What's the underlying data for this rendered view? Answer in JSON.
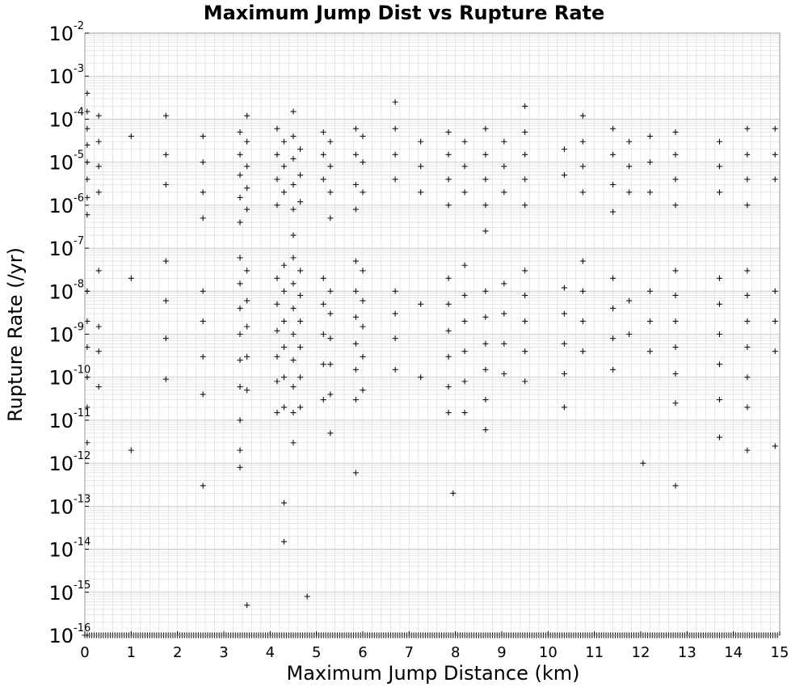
{
  "chart_data": {
    "type": "scatter",
    "title": "Maximum Jump Dist vs Rupture Rate",
    "xlabel": "Maximum Jump Distance (km)",
    "ylabel": "Rupture Rate (/yr)",
    "xlim": [
      0,
      15
    ],
    "ylim": [
      1e-16,
      0.01
    ],
    "yscale": "log",
    "grid": true,
    "marker": "+",
    "marker_color": "#000000",
    "x_ticks": [
      "0",
      "1",
      "2",
      "3",
      "4",
      "5",
      "6",
      "7",
      "8",
      "9",
      "10",
      "11",
      "12",
      "13",
      "14",
      "15"
    ],
    "y_ticks": [
      {
        "base": "10",
        "exp": "-2"
      },
      {
        "base": "10",
        "exp": "-3"
      },
      {
        "base": "10",
        "exp": "-4"
      },
      {
        "base": "10",
        "exp": "-5"
      },
      {
        "base": "10",
        "exp": "-6"
      },
      {
        "base": "10",
        "exp": "-7"
      },
      {
        "base": "10",
        "exp": "-8"
      },
      {
        "base": "10",
        "exp": "-9"
      },
      {
        "base": "10",
        "exp": "-10"
      },
      {
        "base": "10",
        "exp": "-11"
      },
      {
        "base": "10",
        "exp": "-12"
      },
      {
        "base": "10",
        "exp": "-13"
      },
      {
        "base": "10",
        "exp": "-14"
      },
      {
        "base": "10",
        "exp": "-15"
      },
      {
        "base": "10",
        "exp": "-16"
      }
    ],
    "cluster_columns_km": [
      0.05,
      0.3,
      1.75,
      2.55,
      3.35,
      3.5,
      4.15,
      4.3,
      4.5,
      4.65,
      5.15,
      5.3,
      5.85,
      6.0,
      6.7,
      7.25,
      7.85,
      8.2,
      8.65,
      9.05,
      9.5,
      10.35,
      10.75,
      11.4,
      11.75,
      12.2,
      12.75,
      13.7,
      14.3,
      14.9
    ],
    "series": [
      {
        "points": [
          [
            0.05,
            0.0004
          ],
          [
            0.05,
            0.00015
          ],
          [
            0.05,
            6e-05
          ],
          [
            0.05,
            2.5e-05
          ],
          [
            0.05,
            1e-05
          ],
          [
            0.05,
            4e-06
          ],
          [
            0.05,
            1.5e-06
          ],
          [
            0.05,
            6e-07
          ],
          [
            0.05,
            1e-08
          ],
          [
            0.05,
            2e-09
          ],
          [
            0.05,
            5e-10
          ],
          [
            0.05,
            1e-10
          ],
          [
            0.05,
            2e-11
          ],
          [
            0.05,
            3e-12
          ],
          [
            0.3,
            0.00012
          ],
          [
            0.3,
            3e-05
          ],
          [
            0.3,
            8e-06
          ],
          [
            0.3,
            2e-06
          ],
          [
            0.3,
            3e-08
          ],
          [
            0.3,
            1.5e-09
          ],
          [
            0.3,
            4e-10
          ],
          [
            0.3,
            6e-11
          ],
          [
            1.0,
            4e-05
          ],
          [
            1.0,
            2e-08
          ],
          [
            1.0,
            2e-12
          ],
          [
            1.75,
            0.00012
          ],
          [
            1.75,
            1.5e-05
          ],
          [
            1.75,
            3e-06
          ],
          [
            1.75,
            5e-08
          ],
          [
            1.75,
            6e-09
          ],
          [
            1.75,
            8e-10
          ],
          [
            1.75,
            9e-11
          ],
          [
            2.55,
            4e-05
          ],
          [
            2.55,
            1e-05
          ],
          [
            2.55,
            2e-06
          ],
          [
            2.55,
            5e-07
          ],
          [
            2.55,
            1e-08
          ],
          [
            2.55,
            2e-09
          ],
          [
            2.55,
            3e-10
          ],
          [
            2.55,
            4e-11
          ],
          [
            2.55,
            3e-13
          ],
          [
            3.35,
            5e-05
          ],
          [
            3.35,
            1.5e-05
          ],
          [
            3.35,
            5e-06
          ],
          [
            3.35,
            1.5e-06
          ],
          [
            3.35,
            4e-07
          ],
          [
            3.35,
            6e-08
          ],
          [
            3.35,
            1.5e-08
          ],
          [
            3.35,
            4e-09
          ],
          [
            3.35,
            1e-09
          ],
          [
            3.35,
            2.5e-10
          ],
          [
            3.35,
            6e-11
          ],
          [
            3.35,
            1e-11
          ],
          [
            3.35,
            2e-12
          ],
          [
            3.35,
            8e-13
          ],
          [
            3.5,
            0.00012
          ],
          [
            3.5,
            3e-05
          ],
          [
            3.5,
            8e-06
          ],
          [
            3.5,
            2.5e-06
          ],
          [
            3.5,
            8e-07
          ],
          [
            3.5,
            3e-08
          ],
          [
            3.5,
            6e-09
          ],
          [
            3.5,
            1.5e-09
          ],
          [
            3.5,
            3e-10
          ],
          [
            3.5,
            5e-11
          ],
          [
            3.5,
            5e-16
          ],
          [
            4.15,
            6e-05
          ],
          [
            4.15,
            1.5e-05
          ],
          [
            4.15,
            4e-06
          ],
          [
            4.15,
            1e-06
          ],
          [
            4.15,
            2e-08
          ],
          [
            4.15,
            5e-09
          ],
          [
            4.15,
            1.2e-09
          ],
          [
            4.15,
            3e-10
          ],
          [
            4.15,
            8e-11
          ],
          [
            4.15,
            1.5e-11
          ],
          [
            4.3,
            3e-05
          ],
          [
            4.3,
            8e-06
          ],
          [
            4.3,
            2e-06
          ],
          [
            4.3,
            4e-08
          ],
          [
            4.3,
            1e-08
          ],
          [
            4.3,
            2e-09
          ],
          [
            4.3,
            5e-10
          ],
          [
            4.3,
            1e-10
          ],
          [
            4.3,
            2e-11
          ],
          [
            4.3,
            1.2e-13
          ],
          [
            4.3,
            1.5e-14
          ],
          [
            4.5,
            0.00015
          ],
          [
            4.5,
            4e-05
          ],
          [
            4.5,
            1.2e-05
          ],
          [
            4.5,
            3e-06
          ],
          [
            4.5,
            8e-07
          ],
          [
            4.5,
            2e-07
          ],
          [
            4.5,
            6e-08
          ],
          [
            4.5,
            1.5e-08
          ],
          [
            4.5,
            4e-09
          ],
          [
            4.5,
            1e-09
          ],
          [
            4.5,
            2.5e-10
          ],
          [
            4.5,
            6e-11
          ],
          [
            4.5,
            1.5e-11
          ],
          [
            4.5,
            3e-12
          ],
          [
            4.65,
            2e-05
          ],
          [
            4.65,
            5e-06
          ],
          [
            4.65,
            1.2e-06
          ],
          [
            4.65,
            3e-08
          ],
          [
            4.65,
            8e-09
          ],
          [
            4.65,
            2e-09
          ],
          [
            4.65,
            5e-10
          ],
          [
            4.65,
            1e-10
          ],
          [
            4.65,
            2e-11
          ],
          [
            4.8,
            8e-16
          ],
          [
            5.15,
            5e-05
          ],
          [
            5.15,
            1.5e-05
          ],
          [
            5.15,
            4e-06
          ],
          [
            5.15,
            2e-08
          ],
          [
            5.15,
            5e-09
          ],
          [
            5.15,
            1e-09
          ],
          [
            5.15,
            2e-10
          ],
          [
            5.15,
            3e-11
          ],
          [
            5.3,
            3e-05
          ],
          [
            5.3,
            8e-06
          ],
          [
            5.3,
            2e-06
          ],
          [
            5.3,
            5e-07
          ],
          [
            5.3,
            1e-08
          ],
          [
            5.3,
            3e-09
          ],
          [
            5.3,
            8e-10
          ],
          [
            5.3,
            2e-10
          ],
          [
            5.3,
            4e-11
          ],
          [
            5.3,
            5e-12
          ],
          [
            5.85,
            6e-05
          ],
          [
            5.85,
            1.5e-05
          ],
          [
            5.85,
            3e-06
          ],
          [
            5.85,
            8e-07
          ],
          [
            5.85,
            5e-08
          ],
          [
            5.85,
            1e-08
          ],
          [
            5.85,
            2.5e-09
          ],
          [
            5.85,
            6e-10
          ],
          [
            5.85,
            1.5e-10
          ],
          [
            5.85,
            3e-11
          ],
          [
            5.85,
            6e-13
          ],
          [
            6.0,
            4e-05
          ],
          [
            6.0,
            1e-05
          ],
          [
            6.0,
            2e-06
          ],
          [
            6.0,
            3e-08
          ],
          [
            6.0,
            6e-09
          ],
          [
            6.0,
            1.5e-09
          ],
          [
            6.0,
            3e-10
          ],
          [
            6.0,
            5e-11
          ],
          [
            6.7,
            0.00025
          ],
          [
            6.7,
            6e-05
          ],
          [
            6.7,
            1.5e-05
          ],
          [
            6.7,
            4e-06
          ],
          [
            6.7,
            1e-08
          ],
          [
            6.7,
            3e-09
          ],
          [
            6.7,
            8e-10
          ],
          [
            6.7,
            1.5e-10
          ],
          [
            7.25,
            3e-05
          ],
          [
            7.25,
            8e-06
          ],
          [
            7.25,
            2e-06
          ],
          [
            7.25,
            5e-09
          ],
          [
            7.25,
            1e-10
          ],
          [
            7.85,
            5e-05
          ],
          [
            7.85,
            1.5e-05
          ],
          [
            7.85,
            4e-06
          ],
          [
            7.85,
            1e-06
          ],
          [
            7.85,
            2e-08
          ],
          [
            7.85,
            5e-09
          ],
          [
            7.85,
            1.2e-09
          ],
          [
            7.85,
            3e-10
          ],
          [
            7.85,
            6e-11
          ],
          [
            7.85,
            1.5e-11
          ],
          [
            7.95,
            2e-13
          ],
          [
            8.2,
            3e-05
          ],
          [
            8.2,
            8e-06
          ],
          [
            8.2,
            2e-06
          ],
          [
            8.2,
            4e-08
          ],
          [
            8.2,
            8e-09
          ],
          [
            8.2,
            2e-09
          ],
          [
            8.2,
            4e-10
          ],
          [
            8.2,
            8e-11
          ],
          [
            8.2,
            1.5e-11
          ],
          [
            8.65,
            6e-05
          ],
          [
            8.65,
            1.5e-05
          ],
          [
            8.65,
            4e-06
          ],
          [
            8.65,
            1e-06
          ],
          [
            8.65,
            2.5e-07
          ],
          [
            8.65,
            1e-08
          ],
          [
            8.65,
            2.5e-09
          ],
          [
            8.65,
            6e-10
          ],
          [
            8.65,
            1.5e-10
          ],
          [
            8.65,
            3e-11
          ],
          [
            8.65,
            6e-12
          ],
          [
            9.05,
            3e-05
          ],
          [
            9.05,
            8e-06
          ],
          [
            9.05,
            2e-06
          ],
          [
            9.05,
            1.5e-08
          ],
          [
            9.05,
            3e-09
          ],
          [
            9.05,
            6e-10
          ],
          [
            9.05,
            1.2e-10
          ],
          [
            9.5,
            0.0002
          ],
          [
            9.5,
            5e-05
          ],
          [
            9.5,
            1.5e-05
          ],
          [
            9.5,
            4e-06
          ],
          [
            9.5,
            1e-06
          ],
          [
            9.5,
            3e-08
          ],
          [
            9.5,
            8e-09
          ],
          [
            9.5,
            2e-09
          ],
          [
            9.5,
            4e-10
          ],
          [
            9.5,
            8e-11
          ],
          [
            10.35,
            2e-05
          ],
          [
            10.35,
            5e-06
          ],
          [
            10.35,
            1.2e-08
          ],
          [
            10.35,
            3e-09
          ],
          [
            10.35,
            6e-10
          ],
          [
            10.35,
            1.2e-10
          ],
          [
            10.35,
            2e-11
          ],
          [
            10.75,
            0.00012
          ],
          [
            10.75,
            3e-05
          ],
          [
            10.75,
            8e-06
          ],
          [
            10.75,
            2e-06
          ],
          [
            10.75,
            5e-08
          ],
          [
            10.75,
            1e-08
          ],
          [
            10.75,
            2e-09
          ],
          [
            10.75,
            4e-10
          ],
          [
            11.4,
            6e-05
          ],
          [
            11.4,
            1.5e-05
          ],
          [
            11.4,
            3e-06
          ],
          [
            11.4,
            7e-07
          ],
          [
            11.4,
            2e-08
          ],
          [
            11.4,
            4e-09
          ],
          [
            11.4,
            8e-10
          ],
          [
            11.4,
            1.5e-10
          ],
          [
            11.75,
            3e-05
          ],
          [
            11.75,
            8e-06
          ],
          [
            11.75,
            2e-06
          ],
          [
            11.75,
            6e-09
          ],
          [
            11.75,
            1e-09
          ],
          [
            12.2,
            4e-05
          ],
          [
            12.2,
            1e-05
          ],
          [
            12.2,
            2e-06
          ],
          [
            12.2,
            1e-08
          ],
          [
            12.2,
            2e-09
          ],
          [
            12.2,
            4e-10
          ],
          [
            12.05,
            1e-12
          ],
          [
            12.75,
            5e-05
          ],
          [
            12.75,
            1.5e-05
          ],
          [
            12.75,
            4e-06
          ],
          [
            12.75,
            1e-06
          ],
          [
            12.75,
            3e-08
          ],
          [
            12.75,
            8e-09
          ],
          [
            12.75,
            2e-09
          ],
          [
            12.75,
            5e-10
          ],
          [
            12.75,
            1.2e-10
          ],
          [
            12.75,
            2.5e-11
          ],
          [
            12.75,
            3e-13
          ],
          [
            13.7,
            3e-05
          ],
          [
            13.7,
            8e-06
          ],
          [
            13.7,
            2e-06
          ],
          [
            13.7,
            2e-08
          ],
          [
            13.7,
            5e-09
          ],
          [
            13.7,
            1e-09
          ],
          [
            13.7,
            2e-10
          ],
          [
            13.7,
            3e-11
          ],
          [
            13.7,
            4e-12
          ],
          [
            14.3,
            6e-05
          ],
          [
            14.3,
            1.5e-05
          ],
          [
            14.3,
            4e-06
          ],
          [
            14.3,
            1e-06
          ],
          [
            14.3,
            3e-08
          ],
          [
            14.3,
            8e-09
          ],
          [
            14.3,
            2e-09
          ],
          [
            14.3,
            5e-10
          ],
          [
            14.3,
            1e-10
          ],
          [
            14.3,
            2e-11
          ],
          [
            14.3,
            2e-12
          ],
          [
            14.9,
            6e-05
          ],
          [
            14.9,
            1.5e-05
          ],
          [
            14.9,
            4e-06
          ],
          [
            14.9,
            1e-08
          ],
          [
            14.9,
            2e-09
          ],
          [
            14.9,
            4e-10
          ],
          [
            14.9,
            2.5e-12
          ]
        ]
      }
    ],
    "baseline_floor_value": 1e-16
  }
}
